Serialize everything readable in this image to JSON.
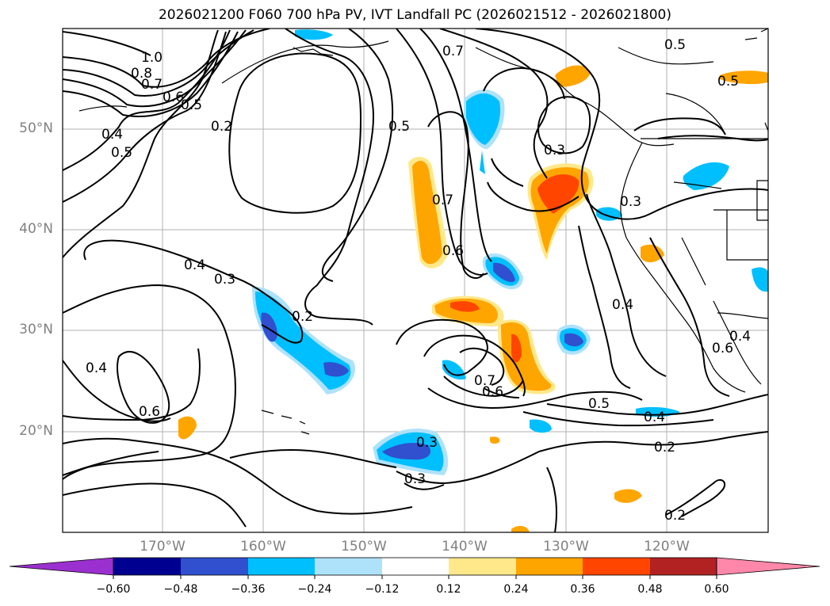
{
  "title": "2026021200 F060 700 hPa PV, IVT Landfall PC (2026021512 - 2026021800)",
  "map": {
    "lat_labels": [
      "50°N",
      "40°N",
      "30°N",
      "20°N"
    ],
    "lon_labels": [
      "170°W",
      "160°W",
      "150°W",
      "140°W",
      "130°W",
      "120°W"
    ],
    "contour_labels": [
      "1.0",
      "0.8",
      "0.7",
      "0.6",
      "0.5",
      "0.4",
      "0.5",
      "0.2",
      "0.5",
      "0.7",
      "0.5",
      "0.5",
      "0.3",
      "0.3",
      "0.7",
      "0.6",
      "0.4",
      "0.3",
      "0.4",
      "0.2",
      "0.4",
      "0.7",
      "0.6",
      "0.5",
      "0.4",
      "0.3",
      "0.3",
      "0.2",
      "0.6",
      "0.6",
      "0.4",
      "0.2"
    ]
  },
  "colorbar": {
    "ticks": [
      "−0.60",
      "−0.48",
      "−0.36",
      "−0.24",
      "−0.12",
      "0.12",
      "0.24",
      "0.36",
      "0.48",
      "0.60"
    ],
    "colors": [
      "#9b30d0",
      "#000090",
      "#3050d0",
      "#00bfff",
      "#aee2fa",
      "#ffffff",
      "#ffe88a",
      "#ffa500",
      "#ff4500",
      "#b22222",
      "#ff88aa"
    ]
  }
}
